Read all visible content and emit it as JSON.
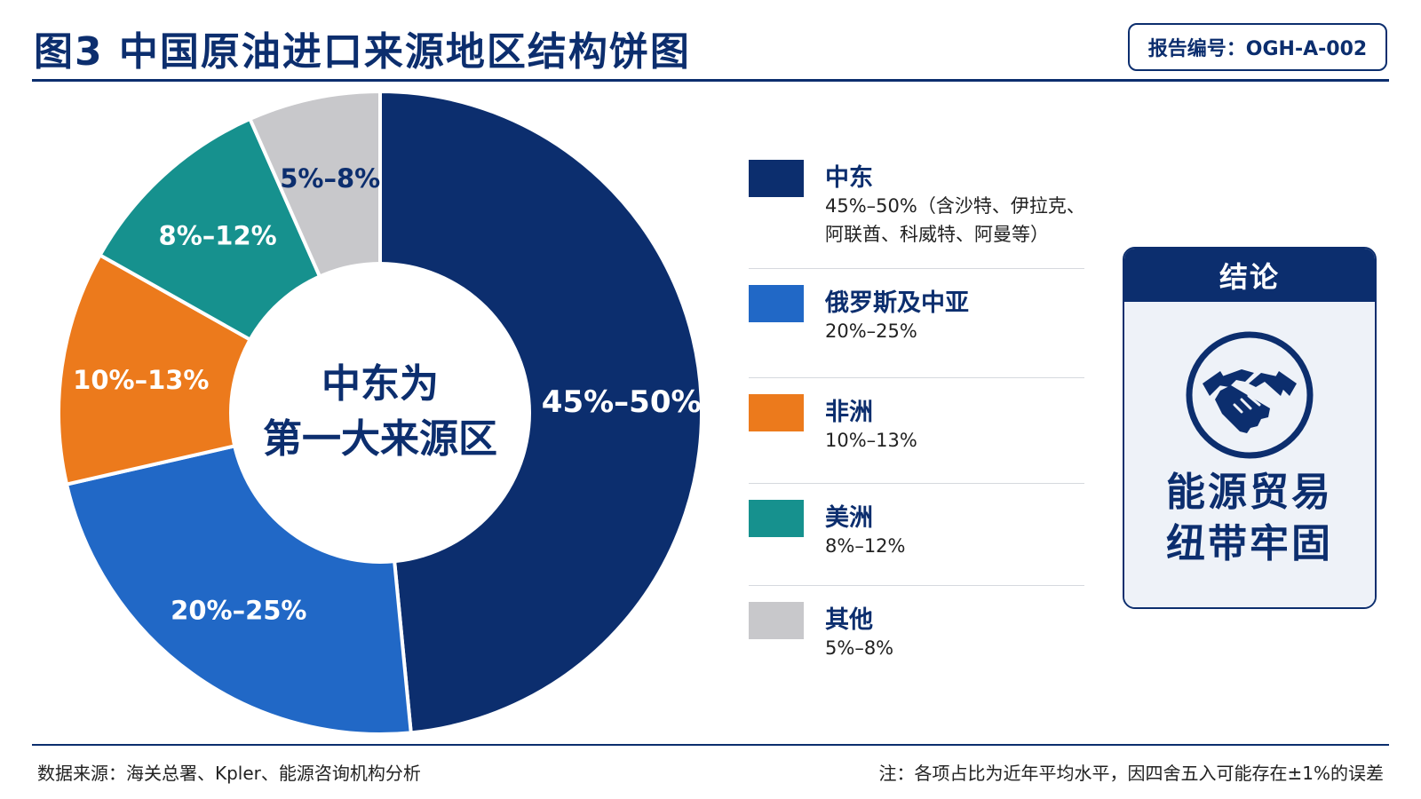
{
  "title": "图3  中国原油进口来源地区结构饼图",
  "report_id": "报告编号：OGH-A-002",
  "chart_data": {
    "type": "pie",
    "title": "图3  中国原油进口来源地区结构饼图",
    "center_label_line1": "中东为",
    "center_label_line2": "第一大来源区",
    "slices": [
      {
        "name": "中东",
        "range": [
          45,
          50
        ],
        "label": "45%–50%",
        "detail": "45%–50%（含沙特、伊拉克、阿联酋、科威特、阿曼等）",
        "color": "#0c2e6e"
      },
      {
        "name": "俄罗斯及中亚",
        "range": [
          20,
          25
        ],
        "label": "20%–25%",
        "detail": "20%–25%",
        "color": "#2168c6"
      },
      {
        "name": "非洲",
        "range": [
          10,
          13
        ],
        "label": "10%–13%",
        "detail": "10%–13%",
        "color": "#ec7a1c"
      },
      {
        "name": "美洲",
        "range": [
          8,
          12
        ],
        "label": "8%–12%",
        "detail": "8%–12%",
        "color": "#16918e"
      },
      {
        "name": "其他",
        "range": [
          5,
          8
        ],
        "label": "5%–8%",
        "detail": "5%–8%",
        "color": "#c8c8cb"
      }
    ],
    "slice_label_colors": [
      "#ffffff",
      "#ffffff",
      "#ffffff",
      "#ffffff",
      "#0c2e6e"
    ]
  },
  "conclusion": {
    "heading": "结论",
    "icon": "handshake-icon",
    "line1": "能源贸易",
    "line2": "纽带牢固"
  },
  "footer": {
    "source": "数据来源：海关总署、Kpler、能源咨询机构分析",
    "note": "注：各项占比为近年平均水平，因四舍五入可能存在±1%的误差"
  }
}
